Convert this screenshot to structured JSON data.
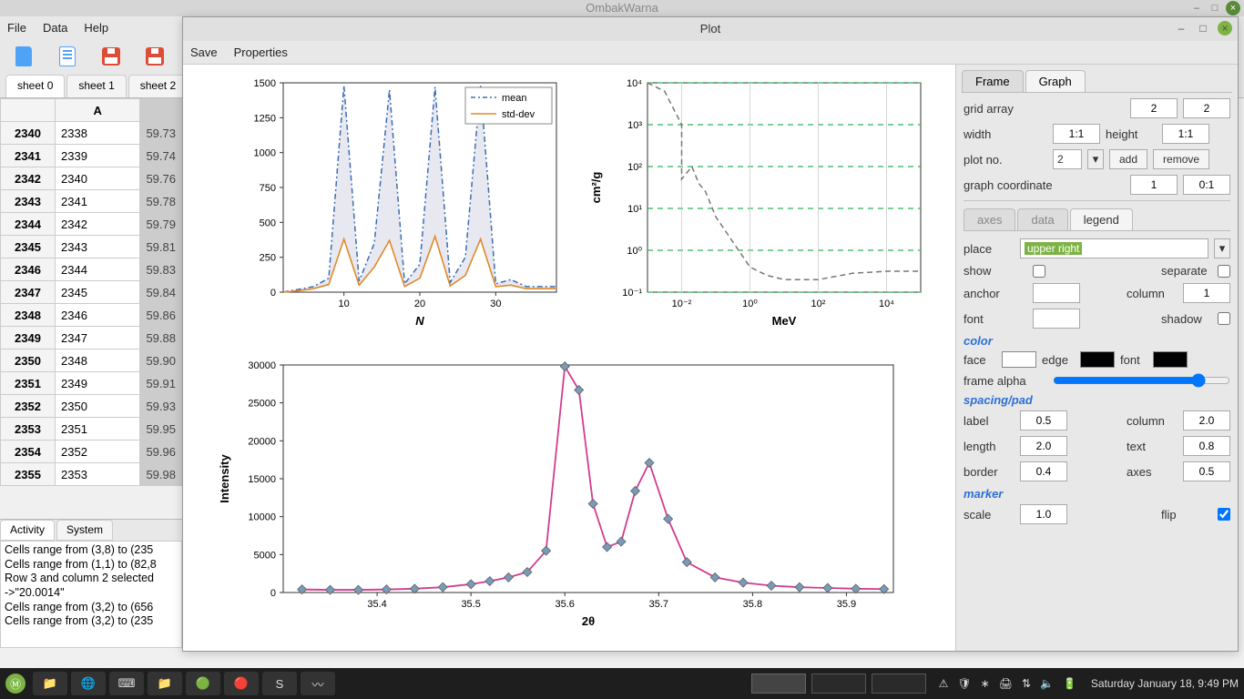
{
  "main_window": {
    "title": "OmbakWarna",
    "menu": [
      "File",
      "Data",
      "Help"
    ],
    "toolbar_download": "⬇"
  },
  "sheets": {
    "tabs": [
      "sheet 0",
      "sheet 1",
      "sheet 2"
    ],
    "active": 0
  },
  "table": {
    "col_headers": [
      "A"
    ],
    "rows": [
      {
        "hdr": "2340",
        "a": "2338",
        "c": "59.73"
      },
      {
        "hdr": "2341",
        "a": "2339",
        "c": "59.74"
      },
      {
        "hdr": "2342",
        "a": "2340",
        "c": "59.76"
      },
      {
        "hdr": "2343",
        "a": "2341",
        "c": "59.78"
      },
      {
        "hdr": "2344",
        "a": "2342",
        "c": "59.79"
      },
      {
        "hdr": "2345",
        "a": "2343",
        "c": "59.81"
      },
      {
        "hdr": "2346",
        "a": "2344",
        "c": "59.83"
      },
      {
        "hdr": "2347",
        "a": "2345",
        "c": "59.84"
      },
      {
        "hdr": "2348",
        "a": "2346",
        "c": "59.86"
      },
      {
        "hdr": "2349",
        "a": "2347",
        "c": "59.88"
      },
      {
        "hdr": "2350",
        "a": "2348",
        "c": "59.90"
      },
      {
        "hdr": "2351",
        "a": "2349",
        "c": "59.91"
      },
      {
        "hdr": "2352",
        "a": "2350",
        "c": "59.93"
      },
      {
        "hdr": "2353",
        "a": "2351",
        "c": "59.95"
      },
      {
        "hdr": "2354",
        "a": "2352",
        "c": "59.96"
      },
      {
        "hdr": "2355",
        "a": "2353",
        "c": "59.98"
      }
    ]
  },
  "activity": {
    "tabs": [
      "Activity",
      "System"
    ],
    "active": 0,
    "lines": [
      "Cells range from (3,8) to (235",
      "Cells range from (1,1) to (82,8",
      "Row 3 and column 2 selected",
      "->\"20.0014\"",
      "Cells range from (3,2) to (656",
      "Cells range from (3,2) to (235"
    ]
  },
  "plot_window": {
    "title": "Plot",
    "menu": [
      "Save",
      "Properties"
    ]
  },
  "chart1": {
    "type": "line",
    "x": [
      2,
      4,
      6,
      8,
      10,
      12,
      14,
      16,
      18,
      20,
      22,
      24,
      26,
      28,
      30,
      32,
      34,
      36,
      38
    ],
    "mean": [
      0,
      20,
      40,
      100,
      1480,
      80,
      350,
      1450,
      60,
      200,
      1470,
      70,
      250,
      1480,
      60,
      90,
      40,
      40,
      40
    ],
    "stddev": [
      0,
      10,
      25,
      55,
      380,
      50,
      180,
      370,
      40,
      100,
      400,
      45,
      120,
      380,
      40,
      50,
      25,
      25,
      25
    ],
    "colors": {
      "mean": "#3b6db3",
      "stddev": "#e08a2c",
      "fill": "#d8d8e6"
    },
    "legend": [
      "mean",
      "std-dev"
    ],
    "xlabel": "N",
    "xtick_vals": [
      10,
      20,
      30
    ],
    "xtick_labels": [
      "10",
      "20",
      "30"
    ],
    "ylim": [
      0,
      1500
    ],
    "yticks": [
      0,
      250,
      500,
      750,
      1000,
      1250,
      1500
    ],
    "line_styles": {
      "mean": "dash-dot",
      "stddev": "solid"
    }
  },
  "chart2": {
    "type": "line-loglog",
    "x_log": [
      -3,
      -2.5,
      -2,
      -2,
      -1.7,
      -1.5,
      -1.3,
      -1,
      -0.5,
      0,
      0.5,
      1,
      2,
      3,
      4,
      5
    ],
    "y_log": [
      4,
      3.8,
      3.0,
      1.7,
      2.0,
      1.6,
      1.4,
      0.8,
      0.2,
      -0.4,
      -0.6,
      -0.7,
      -0.7,
      -0.55,
      -0.5,
      -0.5
    ],
    "line_color": "#777",
    "line_style": "dash",
    "grid_color": "#2fb457",
    "grid_style": "dash",
    "xlabel": "MeV",
    "ylabel": "cm²/g",
    "xticks": [
      -2,
      0,
      2,
      4
    ],
    "xtick_labels": [
      "10⁻²",
      "10⁰",
      "10²",
      "10⁴"
    ],
    "yticks": [
      -1,
      0,
      1,
      2,
      3,
      4
    ],
    "ytick_labels": [
      "10⁻¹",
      "10⁰",
      "10¹",
      "10²",
      "10³",
      "10⁴"
    ]
  },
  "chart3": {
    "type": "line-markers",
    "x": [
      35.32,
      35.35,
      35.38,
      35.41,
      35.44,
      35.47,
      35.5,
      35.52,
      35.54,
      35.56,
      35.58,
      35.6,
      35.615,
      35.63,
      35.645,
      35.66,
      35.675,
      35.69,
      35.71,
      35.73,
      35.76,
      35.79,
      35.82,
      35.85,
      35.88,
      35.91,
      35.94
    ],
    "y": [
      400,
      350,
      350,
      400,
      500,
      700,
      1100,
      1500,
      2000,
      2700,
      5500,
      29800,
      26700,
      11700,
      6000,
      6700,
      13400,
      17100,
      9700,
      4000,
      2000,
      1300,
      900,
      700,
      600,
      500,
      450
    ],
    "marker_color": "#7a9ab8",
    "line_color": "#d13c8e",
    "marker": "diamond",
    "marker_size": 7,
    "xlabel": "2θ",
    "ylabel": "Intensity",
    "xlim": [
      35.3,
      35.95
    ],
    "xticks": [
      35.4,
      35.5,
      35.6,
      35.7,
      35.8,
      35.9
    ],
    "ylim": [
      0,
      30000
    ],
    "yticks": [
      0,
      5000,
      10000,
      15000,
      20000,
      25000,
      30000
    ]
  },
  "sidebar": {
    "topTabs": [
      "Frame",
      "Graph"
    ],
    "topActive": 1,
    "grid_array_label": "grid array",
    "grid_array": [
      "2",
      "2"
    ],
    "width_label": "width",
    "width": "1:1",
    "height_label": "height",
    "height": "1:1",
    "plotno_label": "plot no.",
    "plotno": "2",
    "add_label": "add",
    "remove_label": "remove",
    "graphcoord_label": "graph coordinate",
    "graphcoord": [
      "1",
      "0:1"
    ],
    "subTabs": [
      "axes",
      "data",
      "legend"
    ],
    "subActive": 2,
    "place_label": "place",
    "place_value": "upper right",
    "show_label": "show",
    "show": false,
    "separate_label": "separate",
    "separate": false,
    "anchor_label": "anchor",
    "anchor_value": "",
    "column_label": "column",
    "column_value": "1",
    "font_label": "font",
    "font_value": "",
    "shadow_label": "shadow",
    "shadow": false,
    "section_color": "color",
    "face_label": "face",
    "face_color": "#ffffff",
    "edge_label": "edge",
    "edge_color": "#000000",
    "cfont_label": "font",
    "cfont_color": "#000000",
    "framealpha_label": "frame alpha",
    "framealpha": 0.85,
    "section_spacing": "spacing/pad",
    "lab_label": "label",
    "lab_val": "0.5",
    "col_label": "column",
    "col_val": "2.0",
    "len_label": "length",
    "len_val": "2.0",
    "text_label": "text",
    "text_val": "0.8",
    "border_label": "border",
    "border_val": "0.4",
    "axes_label": "axes",
    "axes_val": "0.5",
    "section_marker": "marker",
    "scale_label": "scale",
    "scale_val": "1.0",
    "flip_label": "flip",
    "flip": true
  },
  "taskbar": {
    "clock": "Saturday January 18,  9:49 PM",
    "tray_icons": [
      "⚠",
      "🛡",
      "∗",
      "🖨",
      "⇅",
      "🔈",
      "🔋"
    ],
    "task_icons": [
      "📁",
      "🌐",
      "⌨",
      "📁",
      "🟢",
      "🔴",
      "S",
      "〰"
    ]
  }
}
